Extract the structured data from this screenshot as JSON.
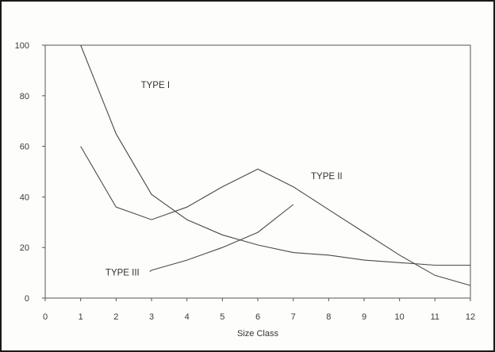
{
  "chart_data": {
    "type": "line",
    "title": "",
    "xlabel": "Size Class",
    "ylabel": "",
    "xlim": [
      0,
      12
    ],
    "ylim": [
      0,
      100
    ],
    "xticks": [
      0,
      1,
      2,
      3,
      4,
      5,
      6,
      7,
      8,
      9,
      10,
      11,
      12
    ],
    "yticks": [
      0,
      20,
      40,
      60,
      80,
      100
    ],
    "grid": false,
    "legend": "none",
    "line_color": "#4a4a4a",
    "series": [
      {
        "name": "TYPE I",
        "x": [
          1,
          2,
          3,
          4,
          5,
          6,
          7,
          8,
          9,
          10,
          11,
          12
        ],
        "y": [
          100,
          65,
          41,
          31,
          25,
          21,
          18,
          17,
          15,
          14,
          13,
          13
        ]
      },
      {
        "name": "TYPE II",
        "x": [
          1,
          2,
          3,
          4,
          5,
          6,
          7,
          8,
          9,
          10,
          11,
          12
        ],
        "y": [
          60,
          36,
          31,
          36,
          44,
          51,
          44,
          35,
          26,
          17,
          9,
          5
        ]
      },
      {
        "name": "TYPE III",
        "x": [
          3,
          4,
          5,
          6,
          7
        ],
        "y": [
          11,
          15,
          20,
          26,
          37
        ]
      }
    ],
    "annotations": [
      {
        "text": "TYPE I",
        "x": 2.7,
        "y": 83
      },
      {
        "text": "TYPE II",
        "x": 7.5,
        "y": 47
      },
      {
        "text": "TYPE III",
        "x": 1.7,
        "y": 9
      }
    ]
  }
}
